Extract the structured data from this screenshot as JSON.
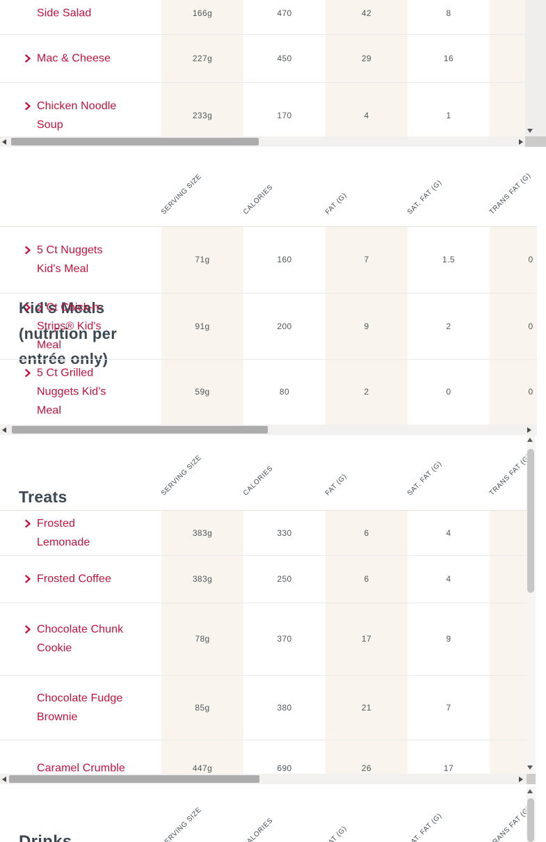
{
  "theme": {
    "red": "#C1113D",
    "heading_color": "#3C4752",
    "value_color": "#4E565C",
    "diag_color": "#3F4A52",
    "beige": "#F9F5EE",
    "header_divider": "#E5E2DC"
  },
  "column_headers": [
    "SERVING SIZE",
    "CALORIES",
    "FAT (G)",
    "SAT. FAT (G)",
    "TRANS FAT (G)"
  ],
  "sections": [
    {
      "id": "menu-top",
      "title": "",
      "rows": [
        {
          "label": "Side Salad",
          "expandable": false,
          "values": [
            "166g",
            "470",
            "42",
            "8",
            ""
          ]
        },
        {
          "label": "Mac & Cheese",
          "expandable": true,
          "values": [
            "227g",
            "450",
            "29",
            "16",
            ""
          ]
        },
        {
          "label": "Chicken Noodle Soup",
          "expandable": true,
          "values": [
            "233g",
            "170",
            "4",
            "1",
            ""
          ]
        }
      ]
    },
    {
      "id": "kids-meals",
      "title": "Kid's Meals (nutrition per entrée only)",
      "rows": [
        {
          "label": "5 Ct Nuggets Kid's Meal",
          "expandable": true,
          "values": [
            "71g",
            "160",
            "7",
            "1.5",
            "0"
          ]
        },
        {
          "label": "2 Ct Chick-n-Strips® Kid's Meal",
          "expandable": true,
          "values": [
            "91g",
            "200",
            "9",
            "2",
            "0"
          ]
        },
        {
          "label": "5 Ct Grilled Nuggets Kid's Meal",
          "expandable": true,
          "values": [
            "59g",
            "80",
            "2",
            "0",
            "0"
          ]
        }
      ]
    },
    {
      "id": "treats",
      "title": "Treats",
      "rows": [
        {
          "label": "Frosted Lemonade",
          "expandable": true,
          "values": [
            "383g",
            "330",
            "6",
            "4",
            ""
          ]
        },
        {
          "label": "Frosted Coffee",
          "expandable": true,
          "values": [
            "383g",
            "250",
            "6",
            "4",
            ""
          ]
        },
        {
          "label": "Chocolate Chunk Cookie",
          "expandable": true,
          "values": [
            "78g",
            "370",
            "17",
            "9",
            ""
          ]
        },
        {
          "label": "Chocolate Fudge Brownie",
          "expandable": false,
          "values": [
            "85g",
            "380",
            "21",
            "7",
            ""
          ]
        },
        {
          "label": "Caramel Crumble",
          "expandable": false,
          "values": [
            "447g",
            "690",
            "26",
            "17",
            ""
          ]
        }
      ]
    },
    {
      "id": "drinks",
      "title": "Drinks",
      "rows": []
    }
  ]
}
